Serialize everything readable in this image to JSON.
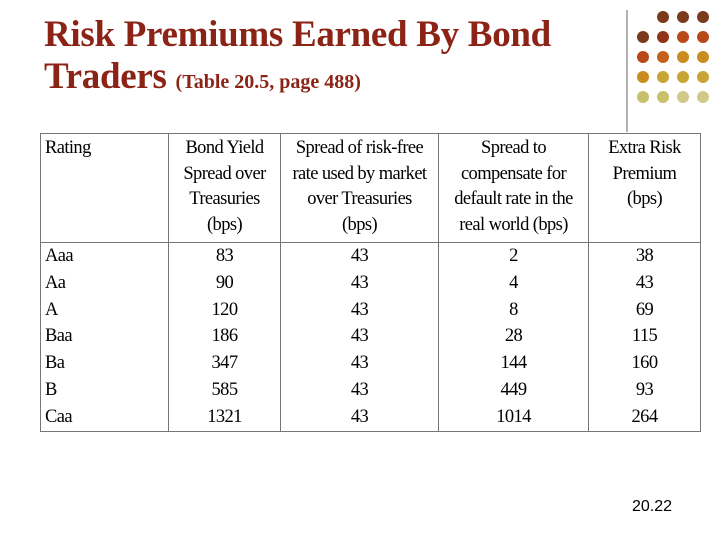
{
  "header": {
    "title": "Risk Premiums Earned By Bond",
    "title_line2": "Traders",
    "subtitle": "(Table 20.5, page 488)"
  },
  "table": {
    "headers": [
      [
        "Rating"
      ],
      [
        "Bond Yield",
        "Spread over",
        "Treasuries",
        "(bps)"
      ],
      [
        "Spread of risk-free",
        "rate used by market",
        "over Treasuries",
        "(bps)"
      ],
      [
        "Spread to",
        "compensate for",
        "default rate in the",
        "real world (bps)"
      ],
      [
        "Extra Risk",
        "Premium",
        "(bps)"
      ]
    ],
    "rows": [
      [
        "Aaa",
        83,
        43,
        2,
        38
      ],
      [
        "Aa",
        90,
        43,
        4,
        43
      ],
      [
        "A",
        120,
        43,
        8,
        69
      ],
      [
        "Baa",
        186,
        43,
        28,
        115
      ],
      [
        "Ba",
        347,
        43,
        144,
        160
      ],
      [
        "B",
        585,
        43,
        449,
        93
      ],
      [
        "Caa",
        1321,
        43,
        1014,
        264
      ]
    ]
  },
  "footer": {
    "page_number": "20.22"
  }
}
